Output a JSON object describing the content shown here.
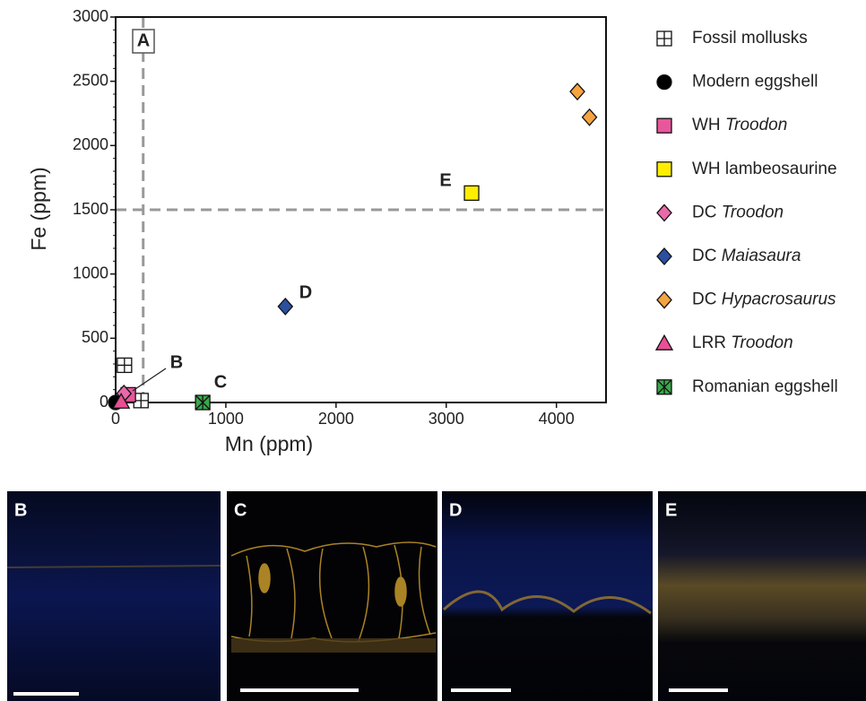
{
  "chart_data": {
    "type": "scatter",
    "xlabel": "Mn (ppm)",
    "ylabel": "Fe (ppm)",
    "xlim": [
      0,
      4450
    ],
    "ylim": [
      0,
      3000
    ],
    "xticks": [
      0,
      1000,
      2000,
      3000,
      4000
    ],
    "yticks": [
      0,
      500,
      1000,
      1500,
      2000,
      2500,
      3000
    ],
    "reference_lines": {
      "x": 250,
      "y": 1500
    },
    "annotations": [
      "A",
      "B",
      "C",
      "D",
      "E"
    ],
    "series": [
      {
        "name": "Fossil mollusks",
        "marker": "square-cross",
        "color": "#ffffff",
        "x": [
          80,
          230
        ],
        "values": [
          290,
          15
        ]
      },
      {
        "name": "Modern eggshell",
        "marker": "circle",
        "color": "#000000",
        "x": [
          0
        ],
        "values": [
          0
        ]
      },
      {
        "name": "WH Troodon",
        "italic": true,
        "marker": "square",
        "color": "#e8579b",
        "x": [
          115
        ],
        "values": [
          60
        ]
      },
      {
        "name": "WH lambeosaurine",
        "marker": "square",
        "color": "#ffee00",
        "x": [
          3230
        ],
        "values": [
          1630
        ]
      },
      {
        "name": "DC Troodon",
        "italic": true,
        "marker": "diamond",
        "color": "#e86aa8",
        "x": [
          75
        ],
        "values": [
          70
        ]
      },
      {
        "name": "DC Maiasaura",
        "italic": true,
        "marker": "diamond",
        "color": "#2c4fa0",
        "x": [
          1540
        ],
        "values": [
          747
        ]
      },
      {
        "name": "DC Hypacrosaurus",
        "italic": true,
        "marker": "diamond",
        "color": "#f5a442",
        "x": [
          4190,
          4300
        ],
        "values": [
          2420,
          2220
        ]
      },
      {
        "name": "LRR Troodon",
        "italic": true,
        "marker": "triangle",
        "color": "#e94f93",
        "x": [
          50
        ],
        "values": [
          5
        ]
      },
      {
        "name": "Romanian eggshell",
        "marker": "star",
        "color": "#3aa84a",
        "x": [
          790
        ],
        "values": [
          0
        ]
      }
    ]
  },
  "panels": [
    {
      "label": "B"
    },
    {
      "label": "C"
    },
    {
      "label": "D"
    },
    {
      "label": "E"
    }
  ]
}
